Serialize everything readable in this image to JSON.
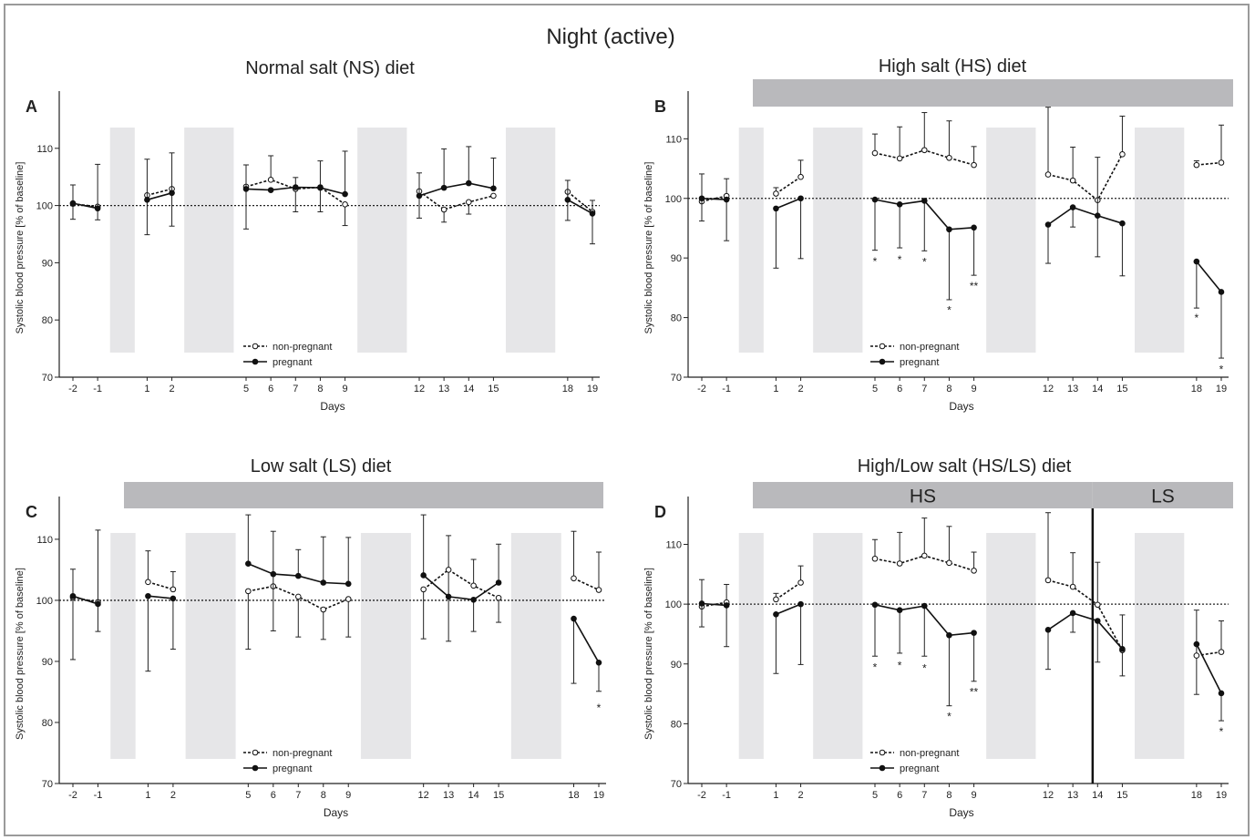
{
  "figure": {
    "title": "Night (active)"
  },
  "chart_data": [
    {
      "type": "line",
      "panel": "A",
      "title": "Normal salt (NS) diet",
      "diet_bar": false,
      "diet_segments": [],
      "xlabel": "Days",
      "ylabel": "Systolic blood pressure [% of baseline]",
      "ylim": [
        70,
        120
      ],
      "yticks": [
        70,
        80,
        90,
        100,
        110
      ],
      "x": [
        -2,
        -1,
        1,
        2,
        5,
        6,
        7,
        8,
        9,
        12,
        13,
        14,
        15,
        18,
        19
      ],
      "xtick_labels": [
        "-2",
        "-1",
        "1",
        "2",
        "5",
        "6",
        "7",
        "8",
        "9",
        "12",
        "13",
        "14",
        "15",
        "18",
        "19"
      ],
      "x_segments": [
        [
          -2,
          -1
        ],
        [
          1,
          2
        ],
        [
          5,
          6,
          7,
          8,
          9
        ],
        [
          12,
          13,
          14,
          15
        ],
        [
          18,
          19
        ]
      ],
      "shaded_bands": [
        [
          -0.5,
          0.5
        ],
        [
          2.5,
          4.5
        ],
        [
          9.5,
          11.5
        ],
        [
          15.5,
          17.5
        ]
      ],
      "reference_line": 100,
      "series": [
        {
          "name": "non-pregnant",
          "style": "dashed",
          "marker": "open",
          "values": [
            100.3,
            99.8,
            101.8,
            102.9,
            103.3,
            104.5,
            102.9,
            103.2,
            100.2,
            102.5,
            99.3,
            100.6,
            101.7,
            102.4,
            98.9
          ],
          "err_low": [
            97.6,
            null,
            94.9,
            96.4,
            95.9,
            null,
            98.9,
            98.9,
            96.5,
            97.8,
            97.1,
            98.5,
            null,
            97.4,
            null
          ],
          "err_high": [
            null,
            null,
            null,
            null,
            null,
            108.7,
            104.9,
            null,
            null,
            null,
            null,
            null,
            null,
            null,
            100.9
          ]
        },
        {
          "name": "pregnant",
          "style": "solid",
          "marker": "filled",
          "values": [
            100.4,
            99.5,
            101.0,
            102.2,
            102.9,
            102.7,
            103.2,
            103.1,
            102.0,
            101.7,
            103.1,
            103.9,
            103.0,
            101.0,
            98.6
          ],
          "err_low": [
            null,
            97.5,
            null,
            null,
            null,
            null,
            null,
            null,
            null,
            null,
            null,
            null,
            null,
            null,
            93.3
          ],
          "err_high": [
            103.6,
            107.2,
            108.1,
            109.2,
            107.1,
            null,
            null,
            107.8,
            109.5,
            105.7,
            109.9,
            110.3,
            108.3,
            104.4,
            null
          ]
        }
      ],
      "annotations": [],
      "legend": "bottom-center"
    },
    {
      "type": "line",
      "panel": "B",
      "title": "High salt (HS) diet",
      "diet_bar": true,
      "diet_segments": [],
      "xlabel": "Days",
      "ylabel": "Systolic blood pressure [% of baseline]",
      "ylim": [
        70,
        118
      ],
      "yticks": [
        70,
        80,
        90,
        100,
        110
      ],
      "x": [
        -2,
        -1,
        1,
        2,
        5,
        6,
        7,
        8,
        9,
        12,
        13,
        14,
        15,
        18,
        19
      ],
      "xtick_labels": [
        "-2",
        "-1",
        "1",
        "2",
        "5",
        "6",
        "7",
        "8",
        "9",
        "12",
        "13",
        "14",
        "15",
        "18",
        "19"
      ],
      "x_segments": [
        [
          -2,
          -1
        ],
        [
          1,
          2
        ],
        [
          5,
          6,
          7,
          8,
          9
        ],
        [
          12,
          13,
          14,
          15
        ],
        [
          18,
          19
        ]
      ],
      "shaded_bands": [
        [
          -0.5,
          0.5
        ],
        [
          2.5,
          4.5
        ],
        [
          9.5,
          11.5
        ],
        [
          15.5,
          17.5
        ]
      ],
      "reference_line": 100,
      "series": [
        {
          "name": "non-pregnant",
          "style": "dashed",
          "marker": "open",
          "values": [
            99.5,
            100.4,
            100.8,
            103.6,
            107.6,
            106.7,
            108.1,
            106.8,
            105.6,
            104.0,
            103.0,
            99.7,
            107.4,
            105.6,
            106.0
          ],
          "err_low": [
            null,
            null,
            null,
            null,
            null,
            null,
            null,
            null,
            null,
            null,
            null,
            null,
            null,
            null,
            null
          ],
          "err_high": [
            104.1,
            103.3,
            101.8,
            106.4,
            110.8,
            112.0,
            114.4,
            113.0,
            108.7,
            115.3,
            108.6,
            null,
            113.8,
            106.3,
            112.3
          ]
        },
        {
          "name": "pregnant",
          "style": "solid",
          "marker": "filled",
          "values": [
            100.0,
            99.8,
            98.3,
            100.0,
            99.8,
            99.0,
            99.6,
            94.8,
            95.1,
            95.6,
            98.5,
            97.1,
            95.8,
            89.4,
            84.3
          ],
          "err_low": [
            96.2,
            92.9,
            88.3,
            89.9,
            91.3,
            91.7,
            91.2,
            83.0,
            87.1,
            89.1,
            95.2,
            90.2,
            87.0,
            81.6,
            73.2
          ],
          "err_high": [
            null,
            null,
            null,
            null,
            null,
            null,
            null,
            null,
            null,
            null,
            null,
            106.9,
            null,
            null,
            null
          ]
        }
      ],
      "annotations": [
        {
          "x": 5,
          "y": 89.4,
          "text": "*"
        },
        {
          "x": 6,
          "y": 89.7,
          "text": "*"
        },
        {
          "x": 7,
          "y": 89.3,
          "text": "*"
        },
        {
          "x": 8,
          "y": 81.2,
          "text": "*"
        },
        {
          "x": 9,
          "y": 85.3,
          "text": "**"
        },
        {
          "x": 18,
          "y": 79.9,
          "text": "*"
        },
        {
          "x": 19,
          "y": 71.3,
          "text": "*"
        }
      ],
      "legend": "bottom-center"
    },
    {
      "type": "line",
      "panel": "C",
      "title": "Low salt (LS) diet",
      "diet_bar": true,
      "diet_segments": [],
      "xlabel": "Days",
      "ylabel": "Systolic blood pressure [% of baseline]",
      "ylim": [
        70,
        117
      ],
      "yticks": [
        70,
        80,
        90,
        100,
        110
      ],
      "x": [
        -2,
        -1,
        1,
        2,
        5,
        6,
        7,
        8,
        9,
        12,
        13,
        14,
        15,
        18,
        19
      ],
      "xtick_labels": [
        "-2",
        "-1",
        "1",
        "2",
        "5",
        "6",
        "7",
        "8",
        "9",
        "12",
        "13",
        "14",
        "15",
        "18",
        "19"
      ],
      "x_segments": [
        [
          -2,
          -1
        ],
        [
          1,
          2
        ],
        [
          5,
          6,
          7,
          8,
          9
        ],
        [
          12,
          13,
          14,
          15
        ],
        [
          18,
          19
        ]
      ],
      "shaded_bands": [
        [
          -0.5,
          0.5
        ],
        [
          2.5,
          4.5
        ],
        [
          9.5,
          11.5
        ],
        [
          15.5,
          17.5
        ]
      ],
      "reference_line": 100,
      "series": [
        {
          "name": "non-pregnant",
          "style": "dashed",
          "marker": "open",
          "values": [
            100.5,
            99.7,
            103.0,
            101.8,
            101.5,
            102.3,
            100.6,
            98.5,
            100.2,
            101.8,
            105.0,
            102.4,
            100.4,
            103.6,
            101.7
          ],
          "err_low": [
            90.3,
            null,
            null,
            null,
            92.0,
            null,
            94.0,
            93.6,
            94.0,
            93.7,
            93.3,
            null,
            96.4,
            null,
            null
          ],
          "err_high": [
            null,
            null,
            108.1,
            104.7,
            null,
            null,
            null,
            null,
            null,
            null,
            110.6,
            106.7,
            null,
            111.3,
            107.9
          ]
        },
        {
          "name": "pregnant",
          "style": "solid",
          "marker": "filled",
          "values": [
            100.7,
            99.4,
            100.7,
            100.3,
            106.0,
            104.3,
            104.0,
            102.9,
            102.7,
            104.1,
            100.6,
            100.1,
            102.9,
            97.0,
            89.8
          ],
          "err_low": [
            null,
            94.9,
            88.4,
            92.0,
            null,
            95.0,
            null,
            null,
            null,
            null,
            null,
            94.9,
            null,
            86.4,
            85.1
          ],
          "err_high": [
            105.1,
            111.5,
            null,
            null,
            114.0,
            111.3,
            108.3,
            110.4,
            110.3,
            114.0,
            null,
            null,
            109.2,
            null,
            null
          ]
        }
      ],
      "annotations": [
        {
          "x": 19,
          "y": 82.4,
          "text": "*"
        }
      ],
      "legend": "bottom-center"
    },
    {
      "type": "line",
      "panel": "D",
      "title": "High/Low salt (HS/LS) diet",
      "diet_bar": true,
      "diet_segments": [
        {
          "label": "HS",
          "x_from": -3.5,
          "x_to": 13.8
        },
        {
          "label": "LS",
          "x_from": 13.8,
          "x_to": 20.0
        }
      ],
      "xlabel": "Days",
      "ylabel": "Systolic blood pressure [% of baseline]",
      "ylim": [
        70,
        118
      ],
      "yticks": [
        70,
        80,
        90,
        100,
        110
      ],
      "x": [
        -2,
        -1,
        1,
        2,
        5,
        6,
        7,
        8,
        9,
        12,
        13,
        14,
        15,
        18,
        19
      ],
      "xtick_labels": [
        "-2",
        "-1",
        "1",
        "2",
        "5",
        "6",
        "7",
        "8",
        "9",
        "12",
        "13",
        "14",
        "15",
        "18",
        "19"
      ],
      "x_segments": [
        [
          -2,
          -1
        ],
        [
          1,
          2
        ],
        [
          5,
          6,
          7,
          8,
          9
        ],
        [
          12,
          13,
          14,
          15
        ],
        [
          18,
          19
        ]
      ],
      "shaded_bands": [
        [
          -0.5,
          0.5
        ],
        [
          2.5,
          4.5
        ],
        [
          9.5,
          11.5
        ],
        [
          15.5,
          17.5
        ]
      ],
      "reference_line": 100,
      "vertical_line": 13.8,
      "series": [
        {
          "name": "non-pregnant",
          "style": "dashed",
          "marker": "open",
          "values": [
            99.6,
            100.3,
            100.8,
            103.6,
            107.6,
            106.8,
            108.1,
            106.9,
            105.6,
            104.0,
            102.9,
            99.9,
            92.3,
            91.4,
            92.0
          ],
          "err_low": [
            null,
            null,
            null,
            null,
            null,
            null,
            null,
            null,
            null,
            null,
            null,
            null,
            88.0,
            84.9,
            null
          ],
          "err_high": [
            104.1,
            103.3,
            101.8,
            106.4,
            110.8,
            112.0,
            114.4,
            113.0,
            108.7,
            115.3,
            108.6,
            107.0,
            null,
            99.0,
            97.2
          ]
        },
        {
          "name": "pregnant",
          "style": "solid",
          "marker": "filled",
          "values": [
            100.1,
            99.8,
            98.3,
            100.0,
            99.9,
            99.0,
            99.7,
            94.8,
            95.2,
            95.7,
            98.5,
            97.2,
            92.5,
            93.3,
            85.1
          ],
          "err_low": [
            96.2,
            92.9,
            88.4,
            89.9,
            91.3,
            91.8,
            91.3,
            83.0,
            87.1,
            89.1,
            95.3,
            90.3,
            null,
            null,
            80.5
          ],
          "err_high": [
            null,
            null,
            null,
            null,
            null,
            null,
            null,
            null,
            null,
            null,
            null,
            null,
            98.2,
            null,
            null
          ]
        }
      ],
      "annotations": [
        {
          "x": 5,
          "y": 89.4,
          "text": "*"
        },
        {
          "x": 6,
          "y": 89.7,
          "text": "*"
        },
        {
          "x": 7,
          "y": 89.3,
          "text": "*"
        },
        {
          "x": 8,
          "y": 81.2,
          "text": "*"
        },
        {
          "x": 9,
          "y": 85.3,
          "text": "**"
        },
        {
          "x": 19,
          "y": 78.7,
          "text": "*"
        }
      ],
      "legend": "bottom-center"
    }
  ]
}
